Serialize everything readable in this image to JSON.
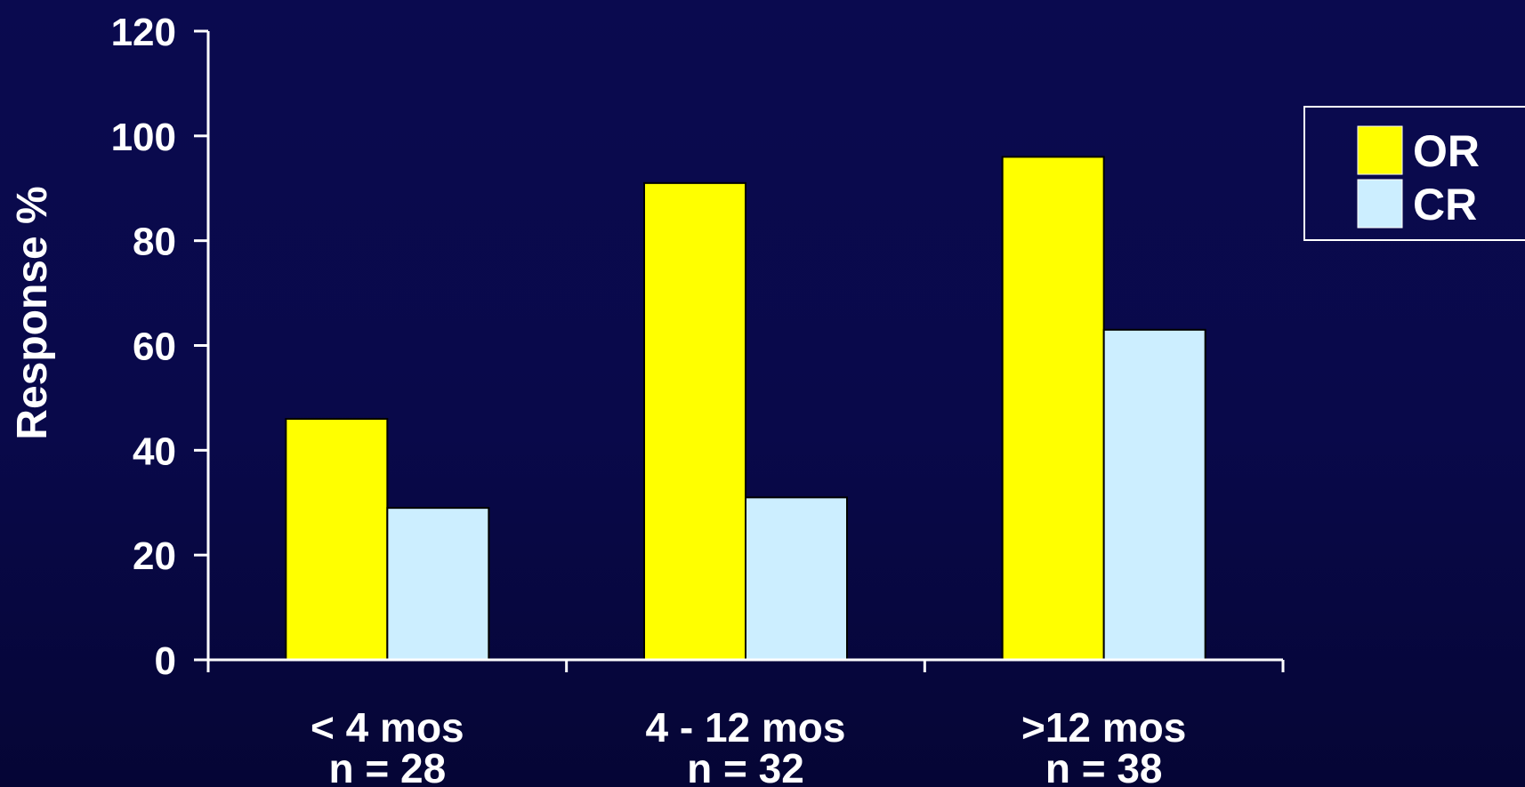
{
  "chart_data": {
    "type": "bar",
    "title": "",
    "xlabel": "",
    "ylabel": "Response %",
    "ylim": [
      0,
      120
    ],
    "yticks": [
      0,
      20,
      40,
      60,
      80,
      100,
      120
    ],
    "categories": [
      "< 4 mos",
      "4 - 12 mos",
      ">12 mos"
    ],
    "category_sublabels": [
      "n = 28",
      "n = 32",
      "n = 38"
    ],
    "series": [
      {
        "name": "OR",
        "color": "#ffff00",
        "values": [
          46,
          91,
          96
        ]
      },
      {
        "name": "CR",
        "color": "#cceeff",
        "values": [
          29,
          31,
          63
        ]
      }
    ],
    "legend": {
      "placement": "right"
    },
    "grid": false
  }
}
